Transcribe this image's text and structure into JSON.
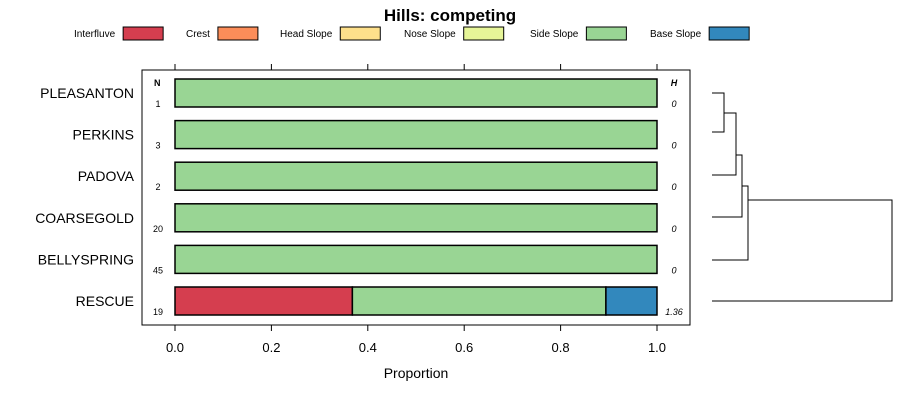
{
  "chart_data": {
    "type": "bar",
    "orientation": "horizontal",
    "stacked": true,
    "title": "Hills: competing",
    "xlabel": "Proportion",
    "ylabel": "",
    "xlim": [
      0,
      1
    ],
    "x_ticks": [
      "0.0",
      "0.2",
      "0.4",
      "0.6",
      "0.8",
      "1.0"
    ],
    "legend": {
      "placement": "top",
      "entries": [
        {
          "name": "Interfluve",
          "color": "#d53e4f"
        },
        {
          "name": "Crest",
          "color": "#fc8d59"
        },
        {
          "name": "Head Slope",
          "color": "#fee08b"
        },
        {
          "name": "Nose Slope",
          "color": "#e6f598"
        },
        {
          "name": "Side Slope",
          "color": "#99d594"
        },
        {
          "name": "Base Slope",
          "color": "#3288bd"
        }
      ]
    },
    "n_header": "N",
    "h_header": "H",
    "categories": [
      "PLEASANTON",
      "PERKINS",
      "PADOVA",
      "COARSEGOLD",
      "BELLYSPRING",
      "RESCUE"
    ],
    "n_values": [
      "1",
      "3",
      "2",
      "20",
      "45",
      "19"
    ],
    "h_values": [
      "0",
      "0",
      "0",
      "0",
      "0",
      "1.36"
    ],
    "series": [
      {
        "name": "Interfluve",
        "values": [
          0,
          0,
          0,
          0,
          0,
          0.368
        ]
      },
      {
        "name": "Crest",
        "values": [
          0,
          0,
          0,
          0,
          0,
          0
        ]
      },
      {
        "name": "Head Slope",
        "values": [
          0,
          0,
          0,
          0,
          0,
          0
        ]
      },
      {
        "name": "Nose Slope",
        "values": [
          0,
          0,
          0,
          0,
          0,
          0
        ]
      },
      {
        "name": "Side Slope",
        "values": [
          1,
          1,
          1,
          1,
          1,
          0.526
        ]
      },
      {
        "name": "Base Slope",
        "values": [
          0,
          0,
          0,
          0,
          0,
          0.106
        ]
      }
    ],
    "grid": false,
    "dendrogram": "right"
  }
}
